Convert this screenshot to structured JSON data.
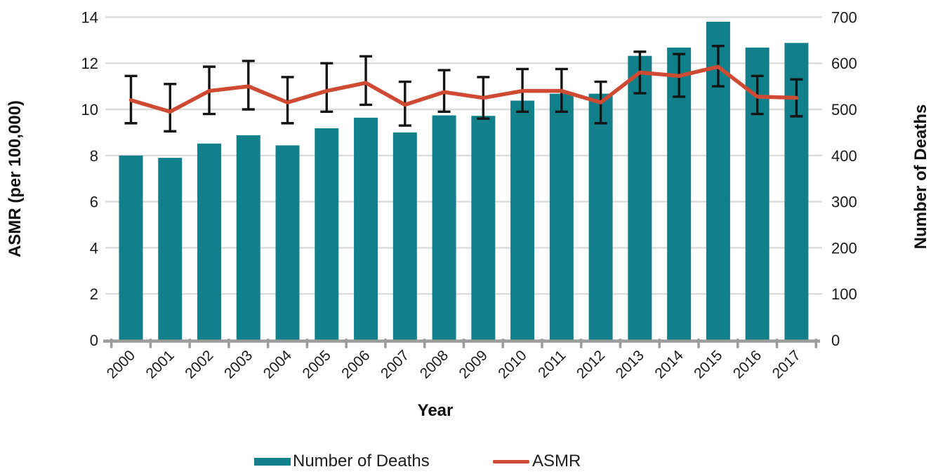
{
  "chart": {
    "left_axis_title": "ASMR (per 100,000)",
    "right_axis_title": "Number of Deaths",
    "x_axis_title": "Year",
    "legend": {
      "deaths_label": "Number of Deaths",
      "asmr_label": "ASMR"
    }
  },
  "colors": {
    "bar_teal": "#12808A",
    "line_red": "#CE4A33",
    "error_bar": "#141414",
    "gridline": "#DBDBDB",
    "axis_line": "#9C9C9C",
    "tick_text": "#1A1A1A"
  },
  "chart_data": {
    "type": "bar+line",
    "title": "",
    "xlabel": "Year",
    "categories": [
      "2000",
      "2001",
      "2002",
      "2003",
      "2004",
      "2005",
      "2006",
      "2007",
      "2008",
      "2009",
      "2010",
      "2011",
      "2012",
      "2013",
      "2014",
      "2015",
      "2016",
      "2017"
    ],
    "left_axis": {
      "label": "ASMR (per 100,000)",
      "min": 0,
      "max": 14,
      "ticks": [
        0,
        2,
        4,
        6,
        8,
        10,
        12,
        14
      ]
    },
    "right_axis": {
      "label": "Number of Deaths",
      "min": 0,
      "max": 700,
      "ticks": [
        0,
        100,
        200,
        300,
        400,
        500,
        600,
        700
      ]
    },
    "grid": true,
    "legend_position": "bottom",
    "series": [
      {
        "name": "Number of Deaths",
        "type": "bar",
        "axis": "right",
        "values": [
          400,
          395,
          426,
          444,
          422,
          459,
          482,
          450,
          487,
          486,
          519,
          534,
          534,
          616,
          634,
          690,
          634,
          644
        ]
      },
      {
        "name": "ASMR",
        "type": "line",
        "axis": "left",
        "values": [
          10.4,
          9.9,
          10.8,
          11.0,
          10.3,
          10.8,
          11.15,
          10.2,
          10.75,
          10.5,
          10.8,
          10.8,
          10.3,
          11.6,
          11.45,
          11.85,
          10.55,
          10.5
        ],
        "ci_low": [
          9.4,
          9.05,
          9.8,
          10.0,
          9.4,
          9.9,
          10.2,
          9.3,
          9.9,
          9.6,
          9.9,
          9.9,
          9.4,
          10.7,
          10.55,
          11.0,
          9.8,
          9.7
        ],
        "ci_high": [
          11.45,
          11.1,
          11.85,
          12.1,
          11.4,
          12.0,
          12.3,
          11.2,
          11.7,
          11.4,
          11.75,
          11.75,
          11.2,
          12.5,
          12.4,
          12.75,
          11.45,
          11.3
        ]
      }
    ]
  }
}
